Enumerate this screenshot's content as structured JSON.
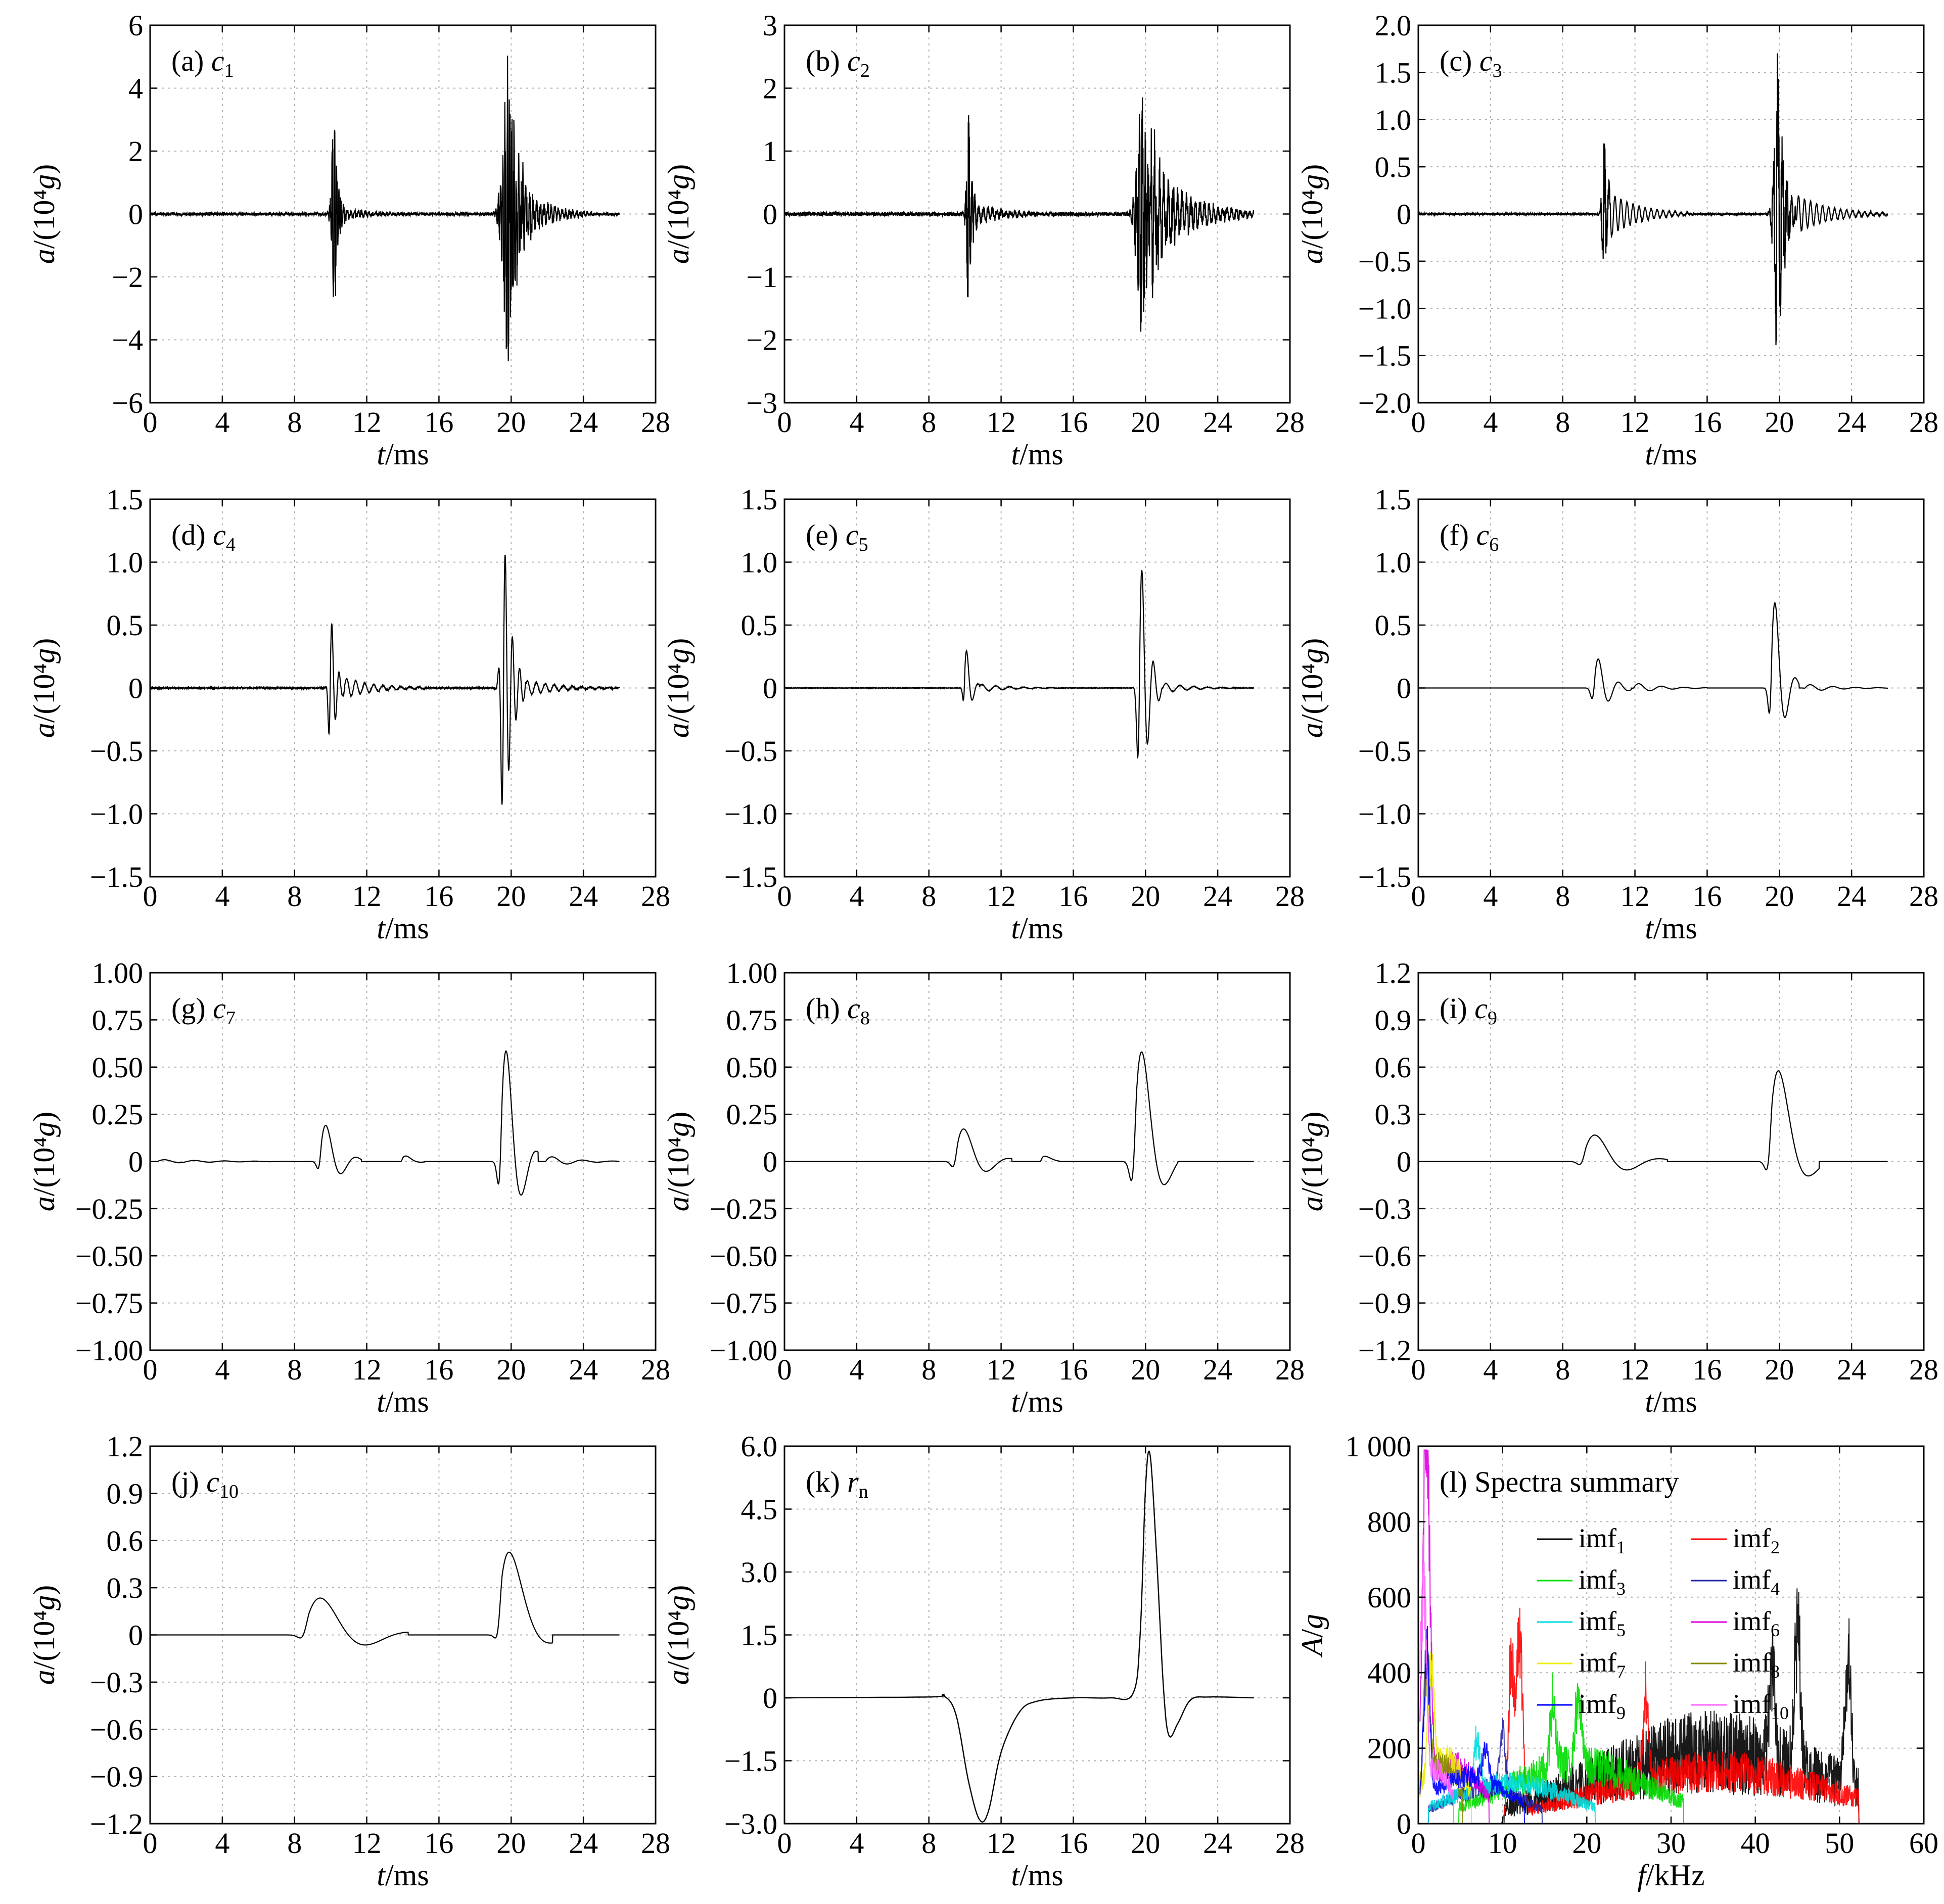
{
  "chart_data": [
    {
      "id": "a",
      "type": "line",
      "label": "(a) c",
      "sub": "1",
      "ylabel": "a/(10⁴g)",
      "xlabel": "t/ms",
      "xlim": [
        0,
        28
      ],
      "ylim": [
        -6,
        6
      ],
      "xticks": [
        "0",
        "4",
        "8",
        "12",
        "16",
        "20",
        "24",
        "28"
      ],
      "yticks": [
        "6",
        "4",
        "2",
        "0",
        "−2",
        "−4",
        "−6"
      ],
      "grid": true,
      "series": [
        {
          "color": "#000000",
          "bursts": [
            {
              "t0": 10.2,
              "amp": 4.0,
              "len": 0.6,
              "tail": 0.5,
              "freq": 8
            },
            {
              "t0": 10.5,
              "amp": 0.25,
              "len": 4.0,
              "tail": 0.3,
              "freq": 5
            },
            {
              "t0": 19.9,
              "amp": 5.5,
              "len": 1.2,
              "tail": 1.2,
              "freq": 8
            },
            {
              "t0": 20.6,
              "amp": 1.0,
              "len": 4.0,
              "tail": 1.0,
              "freq": 5
            }
          ],
          "noise": 0.05,
          "end": 26
        }
      ]
    },
    {
      "id": "b",
      "type": "line",
      "label": "(b) c",
      "sub": "2",
      "ylabel": "a/(10⁴g)",
      "xlabel": "t/ms",
      "xlim": [
        0,
        28
      ],
      "ylim": [
        -3,
        3
      ],
      "xticks": [
        "0",
        "4",
        "8",
        "12",
        "16",
        "20",
        "24",
        "28"
      ],
      "yticks": [
        "3",
        "2",
        "1",
        "0",
        "−1",
        "−2",
        "−3"
      ],
      "grid": true,
      "series": [
        {
          "color": "#000000",
          "bursts": [
            {
              "t0": 10.2,
              "amp": 1.85,
              "len": 0.5,
              "tail": 0.4,
              "freq": 6
            },
            {
              "t0": 10.5,
              "amp": 0.2,
              "len": 4.5,
              "tail": 0.3,
              "freq": 4
            },
            {
              "t0": 19.8,
              "amp": 2.2,
              "len": 1.5,
              "tail": 1.0,
              "freq": 6
            },
            {
              "t0": 20.5,
              "amp": 0.9,
              "len": 5.5,
              "tail": 1.0,
              "freq": 4
            }
          ],
          "noise": 0.03,
          "end": 26
        }
      ]
    },
    {
      "id": "c",
      "type": "line",
      "label": "(c) c",
      "sub": "3",
      "ylabel": "a/(10⁴g)",
      "xlabel": "t/ms",
      "xlim": [
        0,
        28
      ],
      "ylim": [
        -2.0,
        2.0
      ],
      "xticks": [
        "0",
        "4",
        "8",
        "12",
        "16",
        "20",
        "24",
        "28"
      ],
      "yticks": [
        "2.0",
        "1.5",
        "1.0",
        "0.5",
        "0",
        "−0.5",
        "−1.0",
        "−1.5",
        "−2.0"
      ],
      "grid": true,
      "series": [
        {
          "color": "#000000",
          "bursts": [
            {
              "t0": 10.3,
              "amp": 1.0,
              "len": 0.4,
              "tail": 0.4,
              "freq": 4
            },
            {
              "t0": 10.5,
              "amp": 0.25,
              "len": 4.5,
              "tail": 0.2,
              "freq": 3
            },
            {
              "t0": 19.9,
              "amp": 1.9,
              "len": 1.0,
              "tail": 0.7,
              "freq": 4
            },
            {
              "t0": 21.0,
              "amp": 0.2,
              "len": 5.0,
              "tail": 0.2,
              "freq": 3
            }
          ],
          "noise": 0.01,
          "end": 26
        }
      ]
    },
    {
      "id": "d",
      "type": "line",
      "label": "(d) c",
      "sub": "4",
      "ylabel": "a/(10⁴g)",
      "xlabel": "t/ms",
      "xlim": [
        0,
        28
      ],
      "ylim": [
        -1.5,
        1.5
      ],
      "xticks": [
        "0",
        "4",
        "8",
        "12",
        "16",
        "20",
        "24",
        "28"
      ],
      "yticks": [
        "1.5",
        "1.0",
        "0.5",
        "0",
        "−0.5",
        "−1.0",
        "−1.5"
      ],
      "grid": true,
      "series": [
        {
          "color": "#000000",
          "bursts": [
            {
              "t0": 10.0,
              "amp": 0.65,
              "len": 0.8,
              "tail": 0.4,
              "freq": 2.5
            },
            {
              "t0": 10.8,
              "amp": 0.08,
              "len": 4.5,
              "tail": 0.2,
              "freq": 2
            },
            {
              "t0": 19.6,
              "amp": 1.25,
              "len": 1.2,
              "tail": 0.6,
              "freq": 2.5
            },
            {
              "t0": 20.8,
              "amp": 0.06,
              "len": 5.0,
              "tail": 0.2,
              "freq": 2
            }
          ],
          "noise": 0.005,
          "end": 26
        }
      ]
    },
    {
      "id": "e",
      "type": "line",
      "label": "(e) c",
      "sub": "5",
      "ylabel": "a/(10⁴g)",
      "xlabel": "t/ms",
      "xlim": [
        0,
        28
      ],
      "ylim": [
        -1.5,
        1.5
      ],
      "xticks": [
        "0",
        "4",
        "8",
        "12",
        "16",
        "20",
        "24",
        "28"
      ],
      "yticks": [
        "1.5",
        "1.0",
        "0.5",
        "0",
        "−0.5",
        "−1.0",
        "−1.5"
      ],
      "grid": true,
      "series": [
        {
          "color": "#000000",
          "bursts": [
            {
              "t0": 10.0,
              "amp": 0.42,
              "len": 0.8,
              "tail": 0.3,
              "freq": 1.6
            },
            {
              "t0": 10.8,
              "amp": 0.03,
              "len": 4.5,
              "tail": 0.2,
              "freq": 1.3
            },
            {
              "t0": 19.7,
              "amp": 1.2,
              "len": 1.2,
              "tail": 0.5,
              "freq": 1.6
            },
            {
              "t0": 21.0,
              "amp": 0.04,
              "len": 4.0,
              "tail": 0.2,
              "freq": 1.3
            }
          ],
          "noise": 0.002,
          "end": 26
        }
      ]
    },
    {
      "id": "f",
      "type": "line",
      "label": "(f) c",
      "sub": "6",
      "ylabel": "a/(10⁴g)",
      "xlabel": "t/ms",
      "xlim": [
        0,
        28
      ],
      "ylim": [
        -1.5,
        1.5
      ],
      "xticks": [
        "0",
        "4",
        "8",
        "12",
        "16",
        "20",
        "24",
        "28"
      ],
      "yticks": [
        "1.5",
        "1.0",
        "0.5",
        "0",
        "−0.5",
        "−1.0",
        "−1.5"
      ],
      "grid": true,
      "series": [
        {
          "color": "#000000",
          "bursts": [
            {
              "t0": 9.8,
              "amp": 0.3,
              "len": 2.0,
              "tail": 0.6,
              "freq": 0.9
            },
            {
              "t0": 12.0,
              "amp": 0.04,
              "len": 4.0,
              "tail": 0.3,
              "freq": 0.8
            },
            {
              "t0": 19.6,
              "amp": 0.95,
              "len": 1.5,
              "tail": 0.5,
              "freq": 0.9
            },
            {
              "t0": 21.5,
              "amp": 0.03,
              "len": 4.5,
              "tail": 0.3,
              "freq": 0.8
            }
          ],
          "noise": 0.0,
          "end": 26
        }
      ]
    },
    {
      "id": "g",
      "type": "line",
      "label": "(g) c",
      "sub": "7",
      "ylabel": "a/(10⁴g)",
      "xlabel": "t/ms",
      "xlim": [
        0,
        28
      ],
      "ylim": [
        -1.0,
        1.0
      ],
      "xticks": [
        "0",
        "4",
        "8",
        "12",
        "16",
        "20",
        "24",
        "28"
      ],
      "yticks": [
        "1.00",
        "0.75",
        "0.50",
        "0.25",
        "0",
        "−0.25",
        "−0.50",
        "−0.75",
        "−1.00"
      ],
      "grid": true,
      "series": [
        {
          "color": "#000000",
          "bursts": [
            {
              "t0": 9.5,
              "amp": 0.27,
              "len": 2.2,
              "tail": 0.6,
              "freq": 0.6
            },
            {
              "t0": 14.0,
              "amp": 0.05,
              "len": 1.2,
              "tail": 0.3,
              "freq": 0.6
            },
            {
              "t0": 19.5,
              "amp": 0.85,
              "len": 2.0,
              "tail": 0.6,
              "freq": 0.6
            },
            {
              "t0": 22.0,
              "amp": 0.03,
              "len": 4.0,
              "tail": 0.3,
              "freq": 0.6
            },
            {
              "t0": 0.5,
              "amp": 0.01,
              "len": 8.5,
              "tail": 0.2,
              "freq": 0.6
            }
          ],
          "noise": 0.0,
          "end": 26
        }
      ]
    },
    {
      "id": "h",
      "type": "line",
      "label": "(h) c",
      "sub": "8",
      "ylabel": "a/(10⁴g)",
      "xlabel": "t/ms",
      "xlim": [
        0,
        28
      ],
      "ylim": [
        -1.0,
        1.0
      ],
      "xticks": [
        "0",
        "4",
        "8",
        "12",
        "16",
        "20",
        "24",
        "28"
      ],
      "yticks": [
        "1.00",
        "0.75",
        "0.50",
        "0.25",
        "0",
        "−0.25",
        "−0.50",
        "−0.75",
        "−1.00"
      ],
      "grid": true,
      "series": [
        {
          "color": "#000000",
          "bursts": [
            {
              "t0": 9.6,
              "amp": 0.25,
              "len": 3.0,
              "tail": 0.8,
              "freq": 0.4
            },
            {
              "t0": 14.3,
              "amp": 0.06,
              "len": 1.0,
              "tail": 0.3,
              "freq": 0.4
            },
            {
              "t0": 19.5,
              "amp": 0.92,
              "len": 2.3,
              "tail": 0.8,
              "freq": 0.4
            }
          ],
          "noise": 0.0,
          "end": 26
        }
      ]
    },
    {
      "id": "i",
      "type": "line",
      "label": "(i) c",
      "sub": "9",
      "ylabel": "a/(10⁴g)",
      "xlabel": "t/ms",
      "xlim": [
        0,
        28
      ],
      "ylim": [
        -1.2,
        1.2
      ],
      "xticks": [
        "0",
        "4",
        "8",
        "12",
        "16",
        "20",
        "24",
        "28"
      ],
      "yticks": [
        "1.2",
        "0.9",
        "0.6",
        "0.3",
        "0",
        "−0.3",
        "−0.6",
        "−0.9",
        "−1.2"
      ],
      "grid": true,
      "series": [
        {
          "color": "#000000",
          "bursts": [
            {
              "t0": 9.3,
              "amp": 0.24,
              "len": 4.5,
              "tail": 1.0,
              "freq": 0.28
            },
            {
              "t0": 19.6,
              "amp": 0.97,
              "len": 2.6,
              "tail": 0.8,
              "freq": 0.3
            }
          ],
          "noise": 0.0,
          "end": 26
        }
      ]
    },
    {
      "id": "j",
      "type": "line",
      "label": "(j) c",
      "sub": "10",
      "ylabel": "a/(10⁴g)",
      "xlabel": "t/ms",
      "xlim": [
        0,
        28
      ],
      "ylim": [
        -1.2,
        1.2
      ],
      "xticks": [
        "0",
        "4",
        "8",
        "12",
        "16",
        "20",
        "24",
        "28"
      ],
      "yticks": [
        "1.2",
        "0.9",
        "0.6",
        "0.3",
        "0",
        "−0.3",
        "−0.6",
        "−0.9",
        "−1.2"
      ],
      "grid": true,
      "series": [
        {
          "color": "#000000",
          "bursts": [
            {
              "t0": 8.8,
              "amp": 0.35,
              "len": 5.5,
              "tail": 1.2,
              "freq": 0.2
            },
            {
              "t0": 19.5,
              "amp": 0.97,
              "len": 2.8,
              "tail": 0.8,
              "freq": 0.22
            }
          ],
          "noise": 0.0,
          "end": 26
        }
      ]
    },
    {
      "id": "k",
      "type": "line",
      "label": "(k) r",
      "sub": "n",
      "ylabel": "a/(10⁴g)",
      "xlabel": "t/ms",
      "xlim": [
        0,
        28
      ],
      "ylim": [
        -3.0,
        6.0
      ],
      "xticks": [
        "0",
        "4",
        "8",
        "12",
        "16",
        "20",
        "24",
        "28"
      ],
      "yticks": [
        "6.0",
        "4.5",
        "3.0",
        "1.5",
        "0",
        "−1.5",
        "−3.0"
      ],
      "grid": true,
      "residual": [
        [
          0,
          0
        ],
        [
          8,
          0.02
        ],
        [
          8.8,
          0.05
        ],
        [
          9.5,
          -0.4
        ],
        [
          10.2,
          -2.0
        ],
        [
          10.8,
          -2.9
        ],
        [
          11.3,
          -2.7
        ],
        [
          12,
          -1.3
        ],
        [
          13,
          -0.35
        ],
        [
          14,
          -0.08
        ],
        [
          16,
          0
        ],
        [
          18,
          0
        ],
        [
          19.3,
          0.1
        ],
        [
          19.7,
          1.5
        ],
        [
          20.0,
          5.0
        ],
        [
          20.25,
          5.8
        ],
        [
          20.6,
          3.5
        ],
        [
          21.0,
          0.2
        ],
        [
          21.3,
          -0.9
        ],
        [
          21.8,
          -0.6
        ],
        [
          22.5,
          -0.05
        ],
        [
          23.5,
          0.02
        ],
        [
          26,
          0
        ]
      ]
    },
    {
      "id": "l",
      "type": "line",
      "label": "(l) Spectra summary",
      "ylabel": "A/g",
      "xlabel": "f/kHz",
      "xlim": [
        0,
        60
      ],
      "ylim": [
        0,
        1000
      ],
      "xticks": [
        "0",
        "10",
        "20",
        "30",
        "40",
        "50",
        "60"
      ],
      "yticks": [
        "1 000",
        "800",
        "600",
        "400",
        "200",
        "0"
      ],
      "grid": true,
      "legend": [
        {
          "name": "imf",
          "sub": "1",
          "color": "#000000"
        },
        {
          "name": "imf",
          "sub": "2",
          "color": "#ff0000"
        },
        {
          "name": "imf",
          "sub": "3",
          "color": "#00dd00"
        },
        {
          "name": "imf",
          "sub": "4",
          "color": "#2222aa"
        },
        {
          "name": "imf",
          "sub": "5",
          "color": "#00dddd"
        },
        {
          "name": "imf",
          "sub": "6",
          "color": "#dd00dd"
        },
        {
          "name": "imf",
          "sub": "7",
          "color": "#eeee00"
        },
        {
          "name": "imf",
          "sub": "8",
          "color": "#888800"
        },
        {
          "name": "imf",
          "sub": "9",
          "color": "#0000ff"
        },
        {
          "name": "imf",
          "sub": "10",
          "color": "#ff66ff"
        }
      ],
      "spectra": [
        {
          "color": "#000000",
          "bands": [
            [
              17,
              250,
              53,
              1.0
            ]
          ],
          "peaks": [
            [
              45,
              450
            ],
            [
              51,
              430
            ],
            [
              42,
              300
            ]
          ]
        },
        {
          "color": "#ff0000",
          "bands": [
            [
              18,
              180,
              53,
              0.7
            ]
          ],
          "peaks": [
            [
              12,
              600
            ],
            [
              11,
              480
            ],
            [
              27,
              280
            ]
          ]
        },
        {
          "color": "#00dd00",
          "bands": [
            [
              8,
              200,
              30,
              0.6
            ]
          ],
          "peaks": [
            [
              16,
              220
            ],
            [
              19,
              240
            ]
          ]
        },
        {
          "color": "#2222aa",
          "bands": [
            [
              2,
              120,
              14,
              0.5
            ]
          ],
          "peaks": [
            [
              10,
              200
            ]
          ]
        },
        {
          "color": "#00dddd",
          "bands": [
            [
              2,
              140,
              20,
              0.5
            ]
          ],
          "peaks": [
            [
              7,
              160
            ]
          ]
        },
        {
          "color": "#dd00dd",
          "bands": [
            [
              0.3,
              200,
              8,
              0.4
            ]
          ],
          "peaks": [
            [
              0.8,
              900
            ],
            [
              1.2,
              500
            ]
          ]
        },
        {
          "color": "#eeee00",
          "bands": [
            [
              0.3,
              220,
              6,
              0.4
            ]
          ],
          "peaks": [
            [
              1.5,
              350
            ]
          ]
        },
        {
          "color": "#888800",
          "bands": [
            [
              0.3,
              200,
              5,
              0.4
            ]
          ],
          "peaks": [
            [
              1.0,
              400
            ]
          ]
        },
        {
          "color": "#0000ff",
          "bands": [
            [
              0.3,
              160,
              12,
              0.4
            ]
          ],
          "peaks": [
            [
              1.0,
              480
            ],
            [
              8,
              100
            ]
          ]
        },
        {
          "color": "#ff66ff",
          "bands": [
            [
              0.3,
              180,
              4,
              0.4
            ]
          ],
          "peaks": [
            [
              0.6,
              700
            ]
          ]
        }
      ]
    }
  ]
}
